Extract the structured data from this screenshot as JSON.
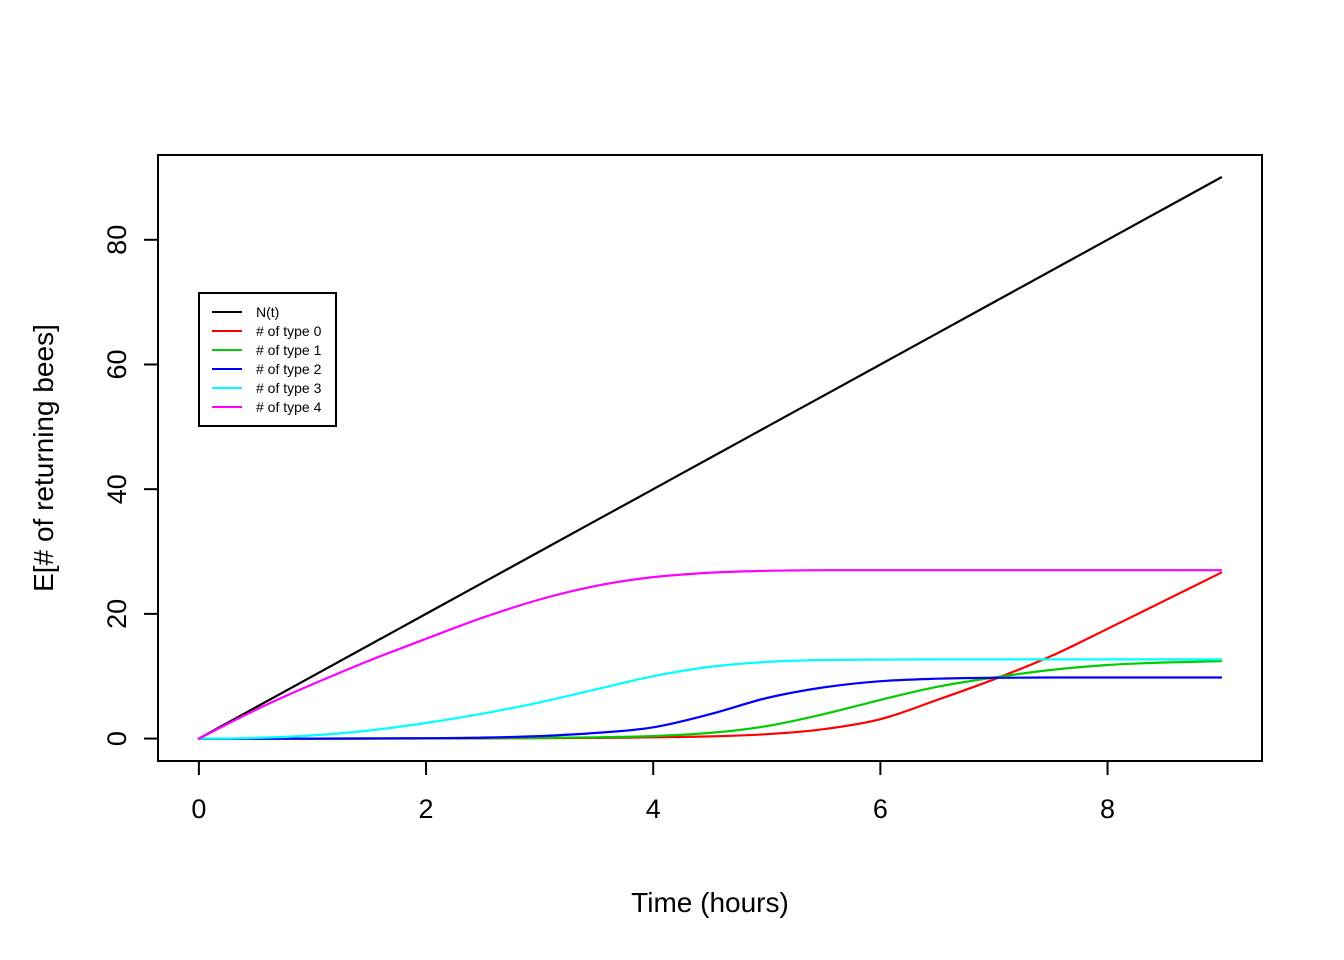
{
  "chart_data": {
    "type": "line",
    "title": "",
    "xlabel": "Time (hours)",
    "ylabel": "E[# of returning bees]",
    "xlim": [
      -0.36,
      9.36
    ],
    "ylim": [
      -3.6,
      93.6
    ],
    "xticks": [
      0,
      2,
      4,
      6,
      8
    ],
    "yticks": [
      0,
      20,
      40,
      60,
      80
    ],
    "grid": false,
    "legend_position": "upper-left-inside",
    "axis_color": "#000000",
    "x": [
      0,
      0.5,
      1,
      1.5,
      2,
      2.5,
      3,
      3.5,
      4,
      4.5,
      5,
      5.5,
      6,
      6.5,
      7,
      7.5,
      8,
      8.5,
      9
    ],
    "series": [
      {
        "name": "N(t)",
        "color": "#000000",
        "values": [
          0,
          5,
          10,
          15,
          20,
          25,
          30,
          35,
          40,
          45,
          50,
          55,
          60,
          65,
          70,
          75,
          80,
          85,
          90
        ]
      },
      {
        "name": "# of type 0",
        "color": "#FF0000",
        "values": [
          0,
          0,
          0,
          0,
          0.01,
          0.02,
          0.05,
          0.1,
          0.2,
          0.35,
          0.7,
          1.5,
          3.1,
          6.2,
          9.5,
          13.2,
          17.6,
          22.1,
          26.6
        ]
      },
      {
        "name": "# of type 1",
        "color": "#00CD00",
        "values": [
          0,
          0,
          0,
          0,
          0.02,
          0.05,
          0.1,
          0.2,
          0.4,
          0.9,
          2.0,
          3.9,
          6.2,
          8.3,
          9.8,
          11.0,
          11.8,
          12.2,
          12.4
        ]
      },
      {
        "name": "# of type 2",
        "color": "#0000FF",
        "values": [
          0,
          0,
          0,
          0.02,
          0.06,
          0.15,
          0.4,
          0.9,
          1.8,
          3.9,
          6.5,
          8.2,
          9.2,
          9.6,
          9.75,
          9.8,
          9.8,
          9.8,
          9.8
        ]
      },
      {
        "name": "# of type 3",
        "color": "#00FFFF",
        "values": [
          0,
          0.1,
          0.5,
          1.3,
          2.5,
          4.0,
          5.8,
          7.9,
          10.0,
          11.5,
          12.3,
          12.6,
          12.65,
          12.7,
          12.7,
          12.7,
          12.7,
          12.7,
          12.7
        ]
      },
      {
        "name": "# of type 4",
        "color": "#FF00FF",
        "values": [
          0,
          4.6,
          8.7,
          12.5,
          16.0,
          19.4,
          22.3,
          24.5,
          25.9,
          26.6,
          26.9,
          27,
          27,
          27,
          27,
          27,
          27,
          27,
          27
        ]
      }
    ]
  }
}
